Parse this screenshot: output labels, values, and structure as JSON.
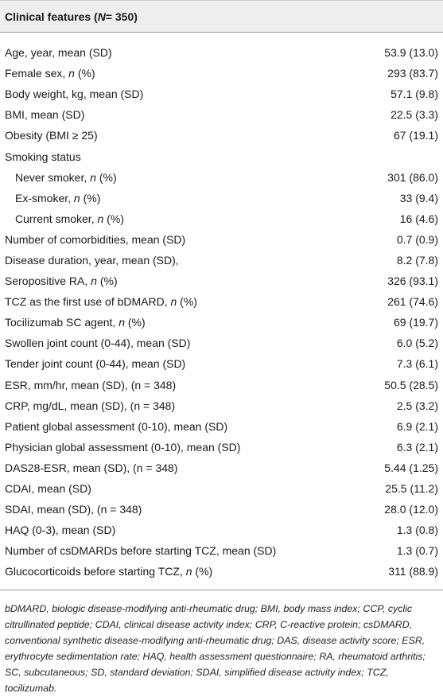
{
  "header": {
    "title_prefix": "Clinical features (",
    "title_n": "N",
    "title_suffix": " = 350)"
  },
  "rows": [
    {
      "pre": "Age, year, mean (SD)",
      "it": "",
      "post": "",
      "value": "53.9 (13.0)"
    },
    {
      "pre": "Female sex, ",
      "it": "n",
      "post": " (%)",
      "value": "293 (83.7)"
    },
    {
      "pre": "Body weight, kg, mean (SD)",
      "it": "",
      "post": "",
      "value": "57.1 (9.8)"
    },
    {
      "pre": "BMI, mean (SD)",
      "it": "",
      "post": "",
      "value": "22.5 (3.3)"
    },
    {
      "pre": "Obesity (BMI ≥ 25)",
      "it": "",
      "post": "",
      "value": "67 (19.1)"
    },
    {
      "pre": "Smoking status",
      "it": "",
      "post": "",
      "value": ""
    },
    {
      "pre": "Never smoker, ",
      "it": "n",
      "post": " (%)",
      "value": "301 (86.0)"
    },
    {
      "pre": "Ex-smoker, ",
      "it": "n",
      "post": " (%)",
      "value": "33 (9.4)"
    },
    {
      "pre": "Current smoker, ",
      "it": "n",
      "post": " (%)",
      "value": "16 (4.6)"
    },
    {
      "pre": "Number of comorbidities, mean (SD)",
      "it": "",
      "post": "",
      "value": "0.7 (0.9)"
    },
    {
      "pre": "Disease duration, year, mean (SD),",
      "it": "",
      "post": "",
      "value": "8.2 (7.8)"
    },
    {
      "pre": "Seropositive RA, ",
      "it": "n",
      "post": " (%)",
      "value": "326 (93.1)"
    },
    {
      "pre": "TCZ as the first use of bDMARD, ",
      "it": "n",
      "post": " (%)",
      "value": "261 (74.6)"
    },
    {
      "pre": "Tocilizumab SC agent, ",
      "it": "n",
      "post": " (%)",
      "value": "69 (19.7)"
    },
    {
      "pre": "Swollen joint count (0-44), mean (SD)",
      "it": "",
      "post": "",
      "value": "6.0 (5.2)"
    },
    {
      "pre": "Tender joint count (0-44), mean (SD)",
      "it": "",
      "post": "",
      "value": "7.3 (6.1)"
    },
    {
      "pre": "ESR, mm/hr, mean (SD), (n = 348)",
      "it": "",
      "post": "",
      "value": "50.5 (28.5)"
    },
    {
      "pre": "CRP, mg/dL, mean (SD), (n = 348)",
      "it": "",
      "post": "",
      "value": "2.5 (3.2)"
    },
    {
      "pre": "Patient global assessment (0-10), mean (SD)",
      "it": "",
      "post": "",
      "value": "6.9 (2.1)"
    },
    {
      "pre": "Physician global assessment (0-10), mean (SD)",
      "it": "",
      "post": "",
      "value": "6.3 (2.1)"
    },
    {
      "pre": "DAS28-ESR, mean (SD), (n = 348)",
      "it": "",
      "post": "",
      "value": "5.44 (1.25)"
    },
    {
      "pre": "CDAI, mean (SD)",
      "it": "",
      "post": "",
      "value": "25.5 (11.2)"
    },
    {
      "pre": "SDAI, mean (SD), (n = 348)",
      "it": "",
      "post": "",
      "value": "28.0 (12.0)"
    },
    {
      "pre": "HAQ (0-3), mean (SD)",
      "it": "",
      "post": "",
      "value": "1.3 (0.8)"
    },
    {
      "pre": "Number of csDMARDs before starting TCZ, mean (SD)",
      "it": "",
      "post": "",
      "value": "1.3 (0.7)"
    },
    {
      "pre": "Glucocorticoids before starting TCZ, ",
      "it": "n",
      "post": " (%)",
      "value": "311 (88.9)"
    }
  ],
  "footnote": "bDMARD, biologic disease-modifying anti-rheumatic drug; BMI, body mass index; CCP, cyclic citrullinated peptide; CDAI, clinical disease activity index; CRP, C-reactive protein; csDMARD, conventional synthetic disease-modifying anti-rheumatic drug; DAS, disease activity score; ESR, erythrocyte sedimentation rate; HAQ, health assessment questionnaire; RA, rheumatoid arthritis; SC, subcutaneous; SD, standard deviation; SDAI, simplified disease activity index; TCZ, tocilizumab."
}
